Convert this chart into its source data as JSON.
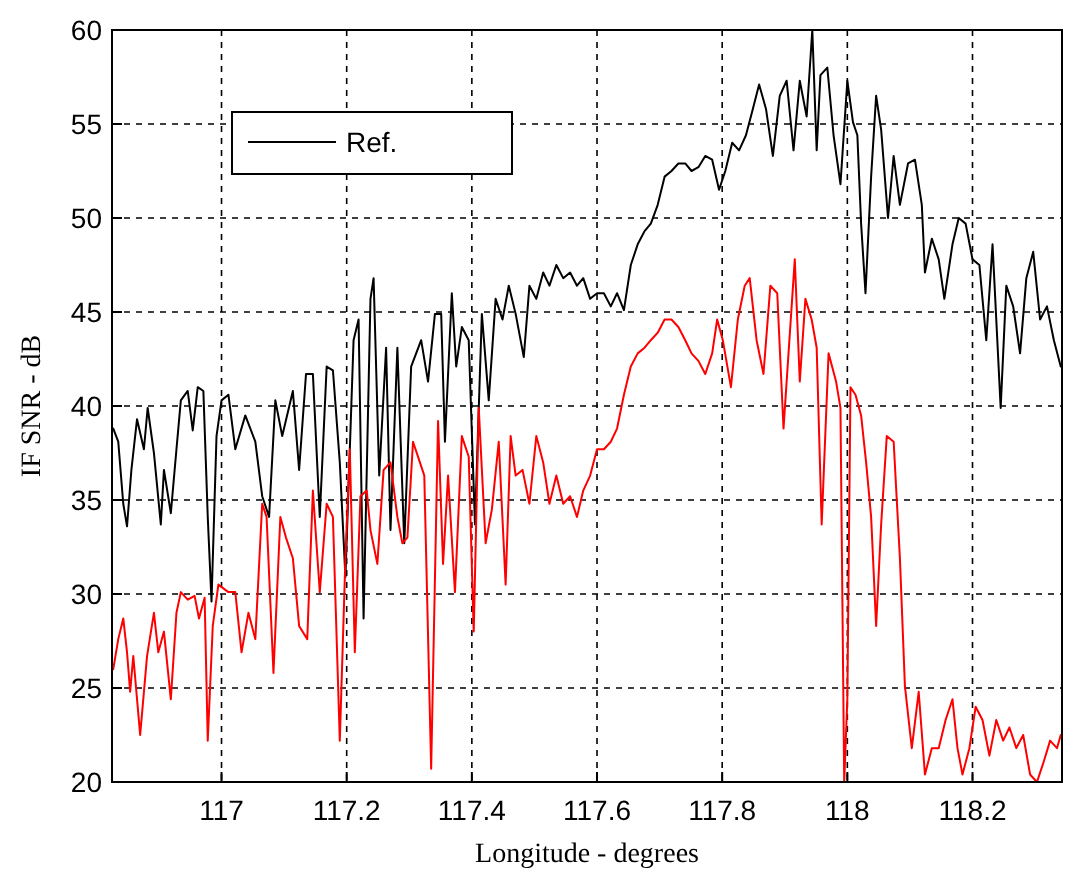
{
  "chart_data": {
    "type": "line",
    "xlabel": "Longitude - degrees",
    "ylabel": "IF SNR - dB",
    "xlim": [
      116.825,
      118.343
    ],
    "xticks": [
      117,
      117.2,
      117.4,
      117.6,
      117.8,
      118,
      118.2
    ],
    "ylim": [
      20,
      60
    ],
    "yticks": [
      20,
      25,
      30,
      35,
      40,
      45,
      50,
      55,
      60
    ],
    "grid": true,
    "legend": "top left",
    "marker": "none",
    "line_style": "solid",
    "series": [
      {
        "name": "Ref.",
        "color": "#000000",
        "x": [
          116.827,
          116.835,
          116.843,
          116.849,
          116.856,
          116.865,
          116.876,
          116.882,
          116.892,
          116.903,
          116.908,
          116.919,
          116.928,
          116.935,
          116.946,
          116.954,
          116.962,
          116.971,
          116.978,
          116.984,
          116.992,
          117.0,
          117.011,
          117.022,
          117.038,
          117.054,
          117.065,
          117.076,
          117.086,
          117.097,
          117.114,
          117.124,
          117.135,
          117.146,
          117.157,
          117.168,
          117.178,
          117.189,
          117.198,
          117.211,
          117.219,
          117.227,
          117.238,
          117.243,
          117.252,
          117.263,
          117.27,
          117.281,
          117.292,
          117.303,
          117.319,
          117.33,
          117.341,
          117.351,
          117.357,
          117.368,
          117.375,
          117.384,
          117.395,
          117.405,
          117.416,
          117.427,
          117.438,
          117.449,
          117.459,
          117.47,
          117.483,
          117.492,
          117.503,
          117.514,
          117.524,
          117.535,
          117.546,
          117.557,
          117.568,
          117.578,
          117.589,
          117.6,
          117.611,
          117.622,
          117.632,
          117.643,
          117.654,
          117.665,
          117.676,
          117.686,
          117.697,
          117.708,
          117.719,
          117.73,
          117.741,
          117.751,
          117.762,
          117.773,
          117.784,
          117.795,
          117.805,
          117.816,
          117.827,
          117.838,
          117.849,
          117.859,
          117.87,
          117.881,
          117.892,
          117.903,
          117.914,
          117.924,
          117.935,
          117.944,
          117.951,
          117.957,
          117.968,
          117.978,
          117.989,
          118.0,
          118.009,
          118.016,
          118.022,
          118.029,
          118.038,
          118.046,
          118.054,
          118.065,
          118.074,
          118.084,
          118.097,
          118.108,
          118.119,
          118.124,
          118.135,
          118.146,
          118.155,
          118.168,
          118.178,
          118.189,
          118.2,
          118.211,
          118.222,
          118.232,
          118.245,
          118.254,
          118.265,
          118.276,
          118.286,
          118.297,
          118.308,
          118.319,
          118.33,
          118.341
        ],
        "values": [
          38.8,
          38.1,
          34.8,
          33.6,
          36.6,
          39.3,
          37.7,
          39.9,
          37.5,
          33.7,
          36.6,
          34.3,
          37.7,
          40.3,
          40.8,
          38.7,
          41,
          40.8,
          34.1,
          29.6,
          38.4,
          40.3,
          40.6,
          37.7,
          39.5,
          38.1,
          35.2,
          34.1,
          40.3,
          38.4,
          40.8,
          36.6,
          41.7,
          41.7,
          34.1,
          42.1,
          41.9,
          37,
          30.9,
          43.5,
          44.6,
          28.7,
          45.7,
          46.8,
          36.3,
          43.1,
          33.4,
          43.1,
          32.7,
          42.1,
          43.5,
          41.3,
          44.9,
          44.9,
          38.1,
          46,
          42.1,
          44.2,
          43.5,
          33.7,
          44.9,
          40.3,
          45.7,
          44.6,
          46.4,
          44.9,
          42.6,
          46.4,
          45.7,
          47.1,
          46.4,
          47.5,
          46.8,
          47.1,
          46.4,
          46.8,
          45.7,
          46,
          46,
          45.3,
          46,
          45.1,
          47.5,
          48.6,
          49.3,
          49.7,
          50.7,
          52.2,
          52.5,
          52.9,
          52.9,
          52.5,
          52.7,
          53.3,
          53.1,
          51.5,
          52.5,
          54,
          53.6,
          54.4,
          55.8,
          57.1,
          55.8,
          53.3,
          56.5,
          57.3,
          53.6,
          57.3,
          55.4,
          60,
          53.6,
          57.6,
          58,
          54.4,
          51.8,
          57.3,
          55.1,
          54.4,
          49.7,
          46,
          52.2,
          56.5,
          54.7,
          50,
          53.3,
          50.7,
          52.9,
          53.1,
          50.7,
          47.1,
          48.9,
          47.8,
          45.7,
          48.6,
          50,
          49.7,
          47.8,
          47.5,
          43.5,
          48.6,
          39.9,
          46.4,
          45.3,
          42.8,
          46.8,
          48.2,
          44.6,
          45.3,
          43.5,
          42.1
        ]
      },
      {
        "color": "#ff0000",
        "x": [
          116.827,
          116.835,
          116.843,
          116.849,
          116.854,
          116.859,
          116.87,
          116.881,
          116.892,
          116.899,
          116.908,
          116.919,
          116.928,
          116.935,
          116.946,
          116.957,
          116.964,
          116.973,
          116.978,
          116.986,
          116.995,
          117.011,
          117.022,
          117.032,
          117.043,
          117.054,
          117.065,
          117.072,
          117.083,
          117.094,
          117.103,
          117.114,
          117.124,
          117.137,
          117.146,
          117.157,
          117.168,
          117.178,
          117.189,
          117.198,
          117.205,
          117.213,
          117.222,
          117.232,
          117.238,
          117.249,
          117.259,
          117.27,
          117.281,
          117.289,
          117.297,
          117.306,
          117.317,
          117.324,
          117.335,
          117.346,
          117.354,
          117.362,
          117.373,
          117.384,
          117.395,
          117.403,
          117.411,
          117.422,
          117.432,
          117.443,
          117.454,
          117.462,
          117.47,
          117.481,
          117.492,
          117.503,
          117.514,
          117.524,
          117.535,
          117.546,
          117.557,
          117.568,
          117.578,
          117.589,
          117.6,
          117.611,
          117.622,
          117.632,
          117.643,
          117.654,
          117.665,
          117.676,
          117.686,
          117.697,
          117.708,
          117.719,
          117.73,
          117.741,
          117.751,
          117.762,
          117.773,
          117.784,
          117.792,
          117.801,
          117.814,
          117.825,
          117.836,
          117.844,
          117.855,
          117.866,
          117.877,
          117.888,
          117.898,
          117.906,
          117.916,
          117.924,
          117.933,
          117.943,
          117.951,
          117.959,
          117.97,
          117.982,
          117.989,
          117.995,
          118.0,
          118.005,
          118.013,
          118.022,
          118.03,
          118.038,
          118.046,
          118.054,
          118.063,
          118.074,
          118.084,
          118.092,
          118.103,
          118.114,
          118.124,
          118.135,
          118.146,
          118.157,
          118.168,
          118.176,
          118.184,
          118.195,
          118.205,
          118.216,
          118.227,
          118.238,
          118.249,
          118.259,
          118.27,
          118.281,
          118.292,
          118.303,
          118.314,
          118.324,
          118.335,
          118.341
        ],
        "values": [
          26,
          27.6,
          28.7,
          26.9,
          24.8,
          26.7,
          22.5,
          26.7,
          29,
          26.9,
          28,
          24.4,
          29,
          30.1,
          29.7,
          29.9,
          28.7,
          29.8,
          22.2,
          28.3,
          30.5,
          30.1,
          30.1,
          26.9,
          29,
          27.6,
          34.8,
          34.1,
          25.8,
          34.1,
          33,
          31.9,
          28.3,
          27.6,
          35.5,
          30.1,
          34.8,
          34.1,
          22.2,
          31.9,
          37.7,
          26.9,
          35.2,
          35.5,
          33.4,
          31.6,
          36.6,
          37,
          34.1,
          32.7,
          33,
          38.1,
          37,
          36.3,
          20.7,
          39.2,
          31.6,
          36.3,
          30.1,
          38.4,
          37.3,
          28,
          39.9,
          32.7,
          34.5,
          38.1,
          30.5,
          38.4,
          36.3,
          36.6,
          34.8,
          38.4,
          37,
          34.8,
          36.3,
          34.8,
          35.2,
          34.1,
          35.5,
          36.3,
          37.7,
          37.7,
          38.1,
          38.8,
          40.6,
          42.1,
          42.8,
          43.1,
          43.5,
          43.9,
          44.6,
          44.6,
          44.2,
          43.5,
          42.8,
          42.4,
          41.7,
          42.8,
          44.6,
          43.5,
          41,
          44.6,
          46.4,
          46.8,
          43.5,
          41.7,
          46.4,
          46,
          38.8,
          42.8,
          47.8,
          41.3,
          45.7,
          44.6,
          43.1,
          33.7,
          42.8,
          41.3,
          39.9,
          20,
          24.4,
          41,
          40.6,
          39.5,
          37,
          34.1,
          28.3,
          33.7,
          38.4,
          38.1,
          31.9,
          25.1,
          21.8,
          24.8,
          20.4,
          21.8,
          21.8,
          23.3,
          24.4,
          21.8,
          20.4,
          21.8,
          24,
          23.3,
          21.4,
          23.3,
          22.2,
          22.9,
          21.8,
          22.5,
          20.4,
          20,
          21.1,
          22.2,
          21.8,
          22.5
        ]
      }
    ]
  }
}
